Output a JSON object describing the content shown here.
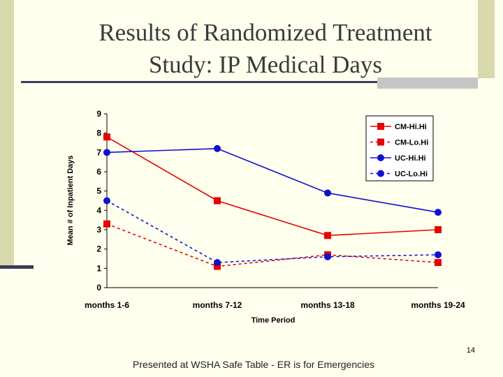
{
  "slide": {
    "title_line1": "Results of Randomized Treatment",
    "title_line2": "Study: IP Medical Days",
    "slide_number": "14",
    "footer": "Presented at WSHA Safe Table - ER is for Emergencies"
  },
  "chart_data": {
    "type": "line",
    "title": "",
    "xlabel": "Time Period",
    "ylabel": "Mean # of Inpatient Days",
    "categories": [
      "months 1-6",
      "months 7-12",
      "months 13-18",
      "months 19-24"
    ],
    "ylim": [
      0,
      9
    ],
    "yticks": [
      "0",
      "1",
      "2",
      "3",
      "4",
      "5",
      "6",
      "7",
      "8",
      "9"
    ],
    "grid": false,
    "legend_position": "top-right",
    "series": [
      {
        "name": "CM-Hi.Hi",
        "values": [
          7.8,
          4.5,
          2.7,
          3.0
        ],
        "color": "#E60000",
        "marker": "square",
        "dash": "solid"
      },
      {
        "name": "CM-Lo.Hi",
        "values": [
          3.3,
          1.1,
          1.7,
          1.3
        ],
        "color": "#E60000",
        "marker": "square",
        "dash": "dashed"
      },
      {
        "name": "UC-Hi.Hi",
        "values": [
          7.0,
          7.2,
          4.9,
          3.9
        ],
        "color": "#1010D0",
        "marker": "circle",
        "dash": "solid"
      },
      {
        "name": "UC-Lo.Hi",
        "values": [
          4.5,
          1.3,
          1.6,
          1.7
        ],
        "color": "#1010D0",
        "marker": "circle",
        "dash": "dashed"
      }
    ]
  }
}
